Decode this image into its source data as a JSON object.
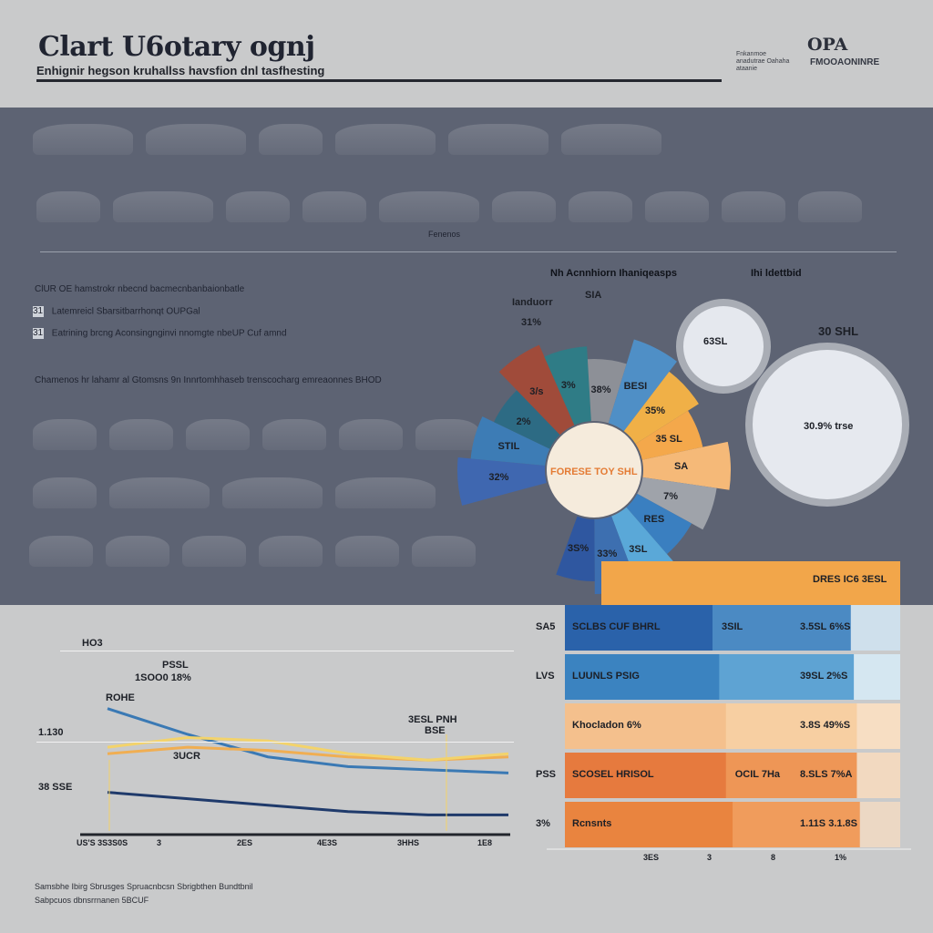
{
  "header": {
    "title": "Clart U6otary ognj",
    "subtitle": "Enhignir hegson kruhallss havsfion dnl tasfhesting",
    "brand_small": "Fnkanmoe anadutrae Oahaha ataanie",
    "brand_logo": "OPA",
    "brand_sub": "FMOOAONINRE"
  },
  "band": {
    "notes": [
      {
        "label": "ClUR OE",
        "text": "hamstrokr nbecnd bacmecnbanbaionbatle"
      },
      {
        "label": "31",
        "text": "Latemreicl Sbarsitbarrhonqt OUPGal"
      },
      {
        "label": "31",
        "text": "Eatrining brcng Aconsingnginvi nnomgte nbeUP Cuf amnd"
      },
      {
        "label": "",
        "text": "Chamenos hr lahamr al Gtomsns 9n Innrtomhhaseb trenscocharg emreaonnes BHOD"
      }
    ],
    "mid_caption": "Fenenos"
  },
  "pie": {
    "heading_left": "Nh Acnnhiorn Ihaniqeasps",
    "heading_right": "Ihi ldettbid",
    "annotations": [
      "Ianduorr",
      "SIA",
      "31%"
    ],
    "center_label": "FORESE TOY SHL",
    "slices": [
      {
        "label": "32%",
        "color": "#3f67b0"
      },
      {
        "label": "STIL",
        "color": "#3d7cb5"
      },
      {
        "label": "2%",
        "color": "#2d6b84"
      },
      {
        "label": "3/s",
        "color": "#a04b3a"
      },
      {
        "label": "3%",
        "color": "#2f7c86"
      },
      {
        "label": "38%",
        "color": "#8d9097"
      },
      {
        "label": "BESI",
        "color": "#4f8fc6"
      },
      {
        "label": "35%",
        "color": "#f0b047"
      },
      {
        "label": "35 SL",
        "color": "#f4a84b"
      },
      {
        "label": "SA",
        "color": "#f5b978"
      },
      {
        "label": "7%",
        "color": "#9fa3aa"
      },
      {
        "label": "RES",
        "color": "#3a7fc0"
      },
      {
        "label": "3SL",
        "color": "#5aa8d8"
      },
      {
        "label": "33%",
        "color": "#3d6fb0"
      },
      {
        "label": "3S%",
        "color": "#2f57a0"
      }
    ],
    "bubble_small": "63SL",
    "bubble_large": "30 SHL",
    "bubble_large_inner": "30.9% trse"
  },
  "chart_data": [
    {
      "type": "bar",
      "title": "",
      "categories": [
        "SA5",
        "LVS",
        "",
        "PSS",
        "3%"
      ],
      "series": [
        {
          "name": "",
          "values": [
            0.75,
            0.73,
            0.71,
            0.71,
            0.69
          ],
          "color_left": "#2a62aa",
          "labels": [
            "SCLBS CUF BHRL",
            "LUUNLS PSIG",
            "Khocladon 6%",
            "SCOSEL HRISOL",
            "Rcnsnts"
          ],
          "mid_labels": [
            "3SIL",
            "",
            "",
            "OCIL 7Ha",
            ""
          ],
          "end_labels": [
            "3.5SL 6%S",
            "39SL 2%S",
            "3.8S 49%S",
            "8.SLS 7%A",
            "1.11S 3.1.8S"
          ]
        }
      ],
      "top_band_label": "DRES IC6 3ESL",
      "xticks": [
        "3ES",
        "3",
        "8",
        "1%"
      ]
    },
    {
      "type": "line",
      "title": "",
      "ytick_labels": [
        "HO3",
        "1.130",
        "38 SSE"
      ],
      "annotations": [
        "PSSL",
        "1SOO0 18%",
        "ROHE",
        "3UCR",
        "3ESL PNH",
        "BSE"
      ],
      "x": [
        0,
        1,
        2,
        3,
        4,
        5
      ],
      "xticks": [
        "US'S 3S3S0S",
        "3",
        "2ES",
        "4E3S",
        "3HHS",
        "1E8"
      ],
      "series": [
        {
          "name": "",
          "color": "#3a79b4",
          "values": [
            38,
            30,
            23,
            20,
            19,
            18
          ]
        },
        {
          "name": "",
          "color": "#1f3a6b",
          "values": [
            12,
            10,
            8,
            6,
            5,
            5
          ]
        },
        {
          "name": "",
          "color": "#f0ae52",
          "values": [
            24,
            26,
            25,
            23,
            22,
            23
          ]
        },
        {
          "name": "",
          "color": "#f3d36b",
          "values": [
            26,
            29,
            28,
            24,
            22,
            24
          ]
        }
      ],
      "ylim": [
        0,
        60
      ]
    }
  ],
  "footer": {
    "source_line1": "Samsbhe Ibirg Sbrusges Spruacnbcsn Sbrigbthen Bundtbnil",
    "source_line2": "Sabpcuos dbnsrrnanen 5BCUF"
  }
}
